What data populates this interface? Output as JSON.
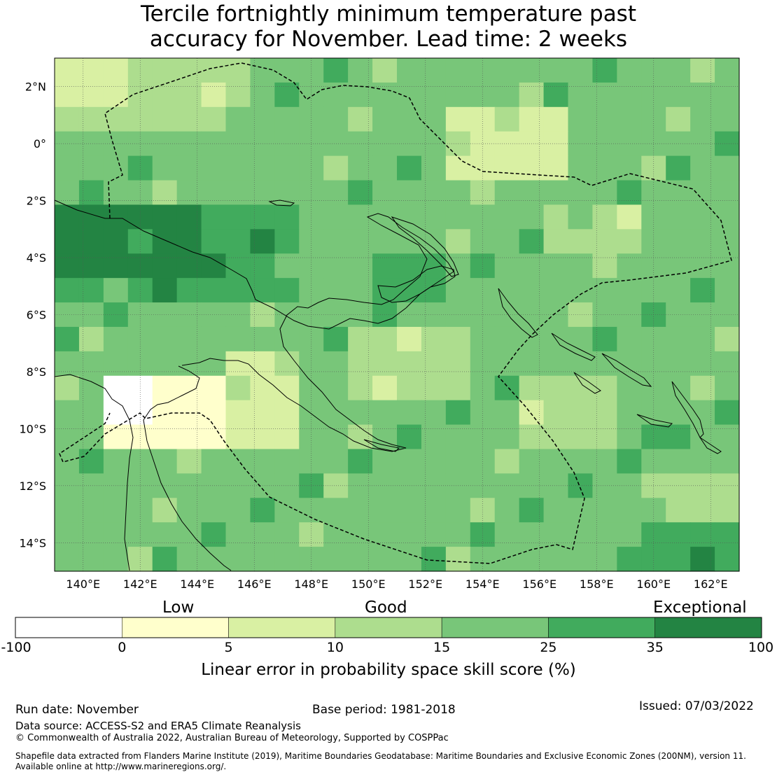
{
  "title_line1": "Tercile fortnightly minimum temperature past",
  "title_line2": "accuracy for November. Lead time: 2 weeks",
  "map": {
    "lon_range": [
      139,
      163
    ],
    "lat_range": [
      -15,
      3
    ],
    "lon_ticks": [
      "140°E",
      "142°E",
      "144°E",
      "146°E",
      "148°E",
      "150°E",
      "152°E",
      "154°E",
      "156°E",
      "158°E",
      "160°E",
      "162°E"
    ],
    "lat_ticks": [
      "2°N",
      "0°",
      "2°S",
      "4°S",
      "6°S",
      "8°S",
      "10°S",
      "12°S",
      "14°S"
    ]
  },
  "colorbar": {
    "category_labels": [
      "Low",
      "Good",
      "Exceptional"
    ],
    "ticks": [
      "-100",
      "0",
      "5",
      "10",
      "15",
      "25",
      "35",
      "100"
    ],
    "colors": [
      "#ffffff",
      "#ffffcc",
      "#d9f0a3",
      "#addd8e",
      "#78c679",
      "#41ab5d",
      "#238443"
    ],
    "title": "Linear error in probability space skill score (%)"
  },
  "footer": {
    "run_date": "Run date: November",
    "base_period": "Base period: 1981-2018",
    "issued": "Issued: 07/03/2022",
    "data_source": "Data source: ACCESS-S2 and ERA5 Climate Reanalysis",
    "copyright": "© Commonwealth of Australia 2022, Australian Bureau of Meteorology, Supported by COSPPac",
    "shapefile_line1": "Shapefile data extracted from Flanders Marine Institute (2019), Maritime Boundaries Geodatabase: Maritime Boundaries and Exclusive Economic Zones (200NM), version 11.",
    "shapefile_line2": "Available online at http://www.marineregions.org/."
  }
}
